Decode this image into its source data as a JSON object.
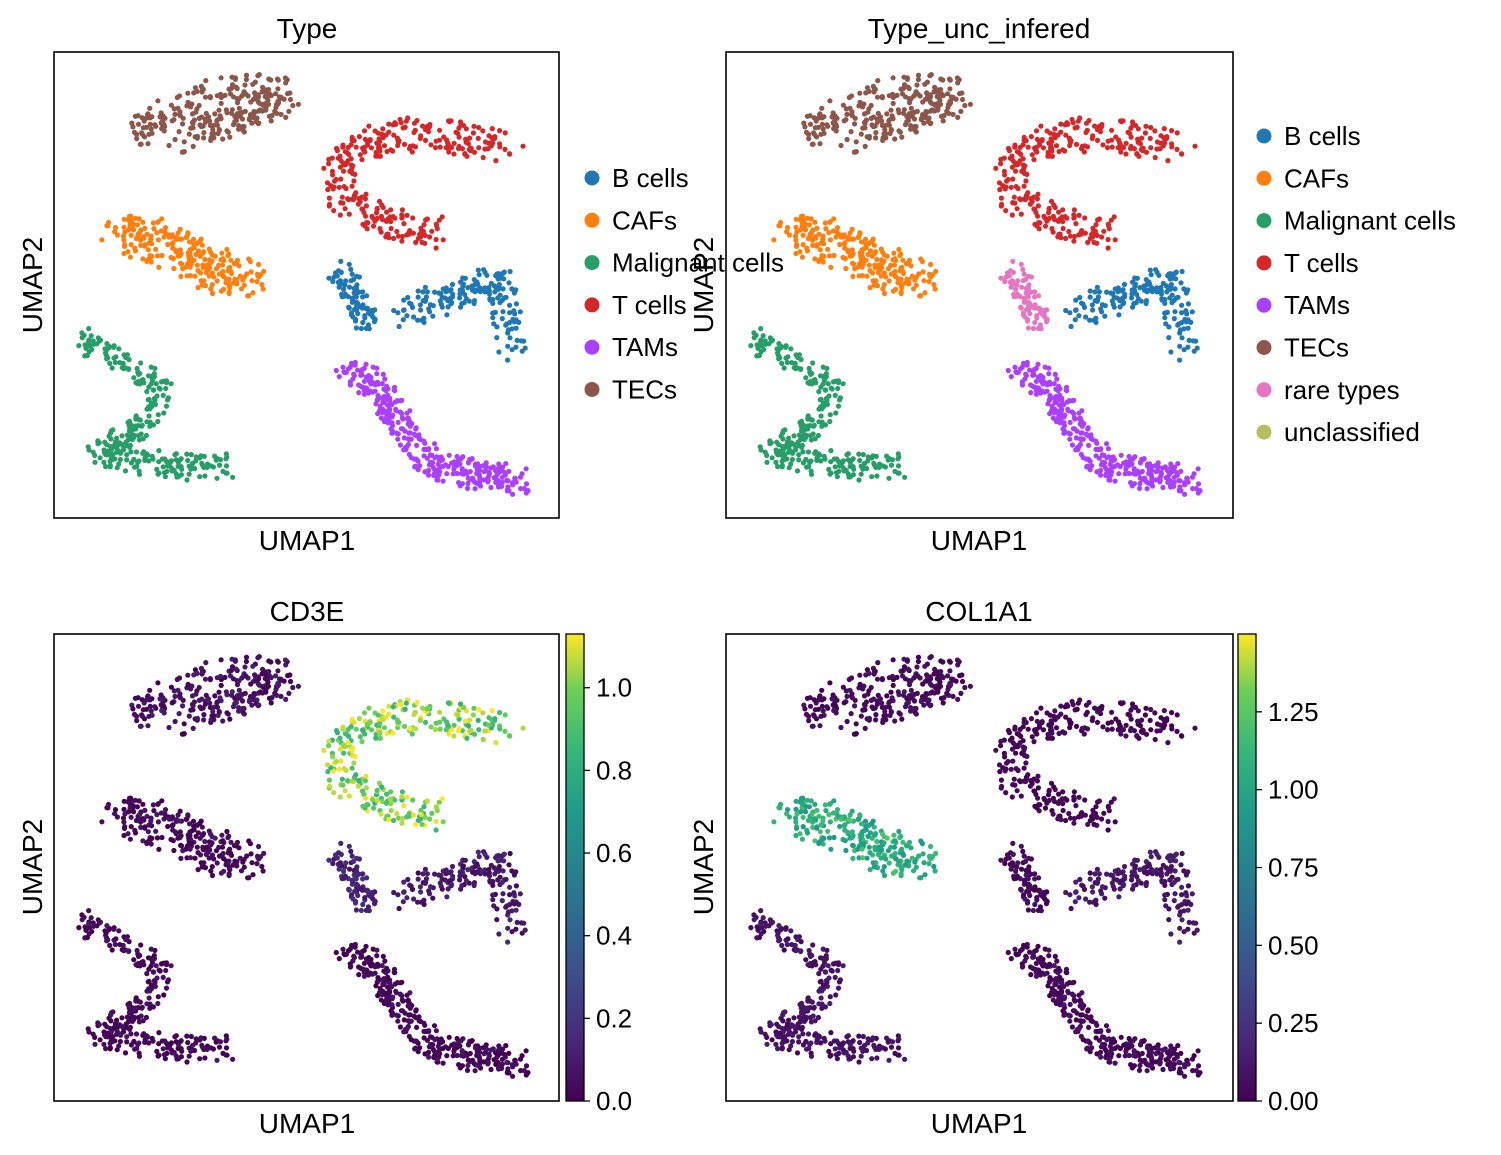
{
  "chart_data": [
    {
      "type": "scatter",
      "title": "Type",
      "xlabel": "UMAP1",
      "ylabel": "UMAP2",
      "coloring": "categorical",
      "legend_position": "right",
      "legend": [
        {
          "name": "B cells",
          "color": "#1f77b4"
        },
        {
          "name": "CAFs",
          "color": "#ff7f0e"
        },
        {
          "name": "Malignant cells",
          "color": "#279e68"
        },
        {
          "name": "T cells",
          "color": "#d62728"
        },
        {
          "name": "TAMs",
          "color": "#aa40fc"
        },
        {
          "name": "TECs",
          "color": "#8c564b"
        }
      ],
      "clusters": [
        "TECs",
        "T cells",
        "CAFs",
        "B cells",
        "B cells",
        "Malignant cells",
        "TAMs"
      ]
    },
    {
      "type": "scatter",
      "title": "Type_unc_infered",
      "xlabel": "UMAP1",
      "ylabel": "UMAP2",
      "coloring": "categorical",
      "legend_position": "right",
      "legend": [
        {
          "name": "B cells",
          "color": "#1f77b4"
        },
        {
          "name": "CAFs",
          "color": "#ff7f0e"
        },
        {
          "name": "Malignant cells",
          "color": "#279e68"
        },
        {
          "name": "T cells",
          "color": "#d62728"
        },
        {
          "name": "TAMs",
          "color": "#aa40fc"
        },
        {
          "name": "TECs",
          "color": "#8c564b"
        },
        {
          "name": "rare types",
          "color": "#e377c2"
        },
        {
          "name": "unclassified",
          "color": "#b5bd61"
        }
      ],
      "clusters": [
        "TECs",
        "T cells",
        "CAFs",
        "rare types",
        "B cells",
        "Malignant cells",
        "TAMs"
      ]
    },
    {
      "type": "scatter",
      "title": "CD3E",
      "xlabel": "UMAP1",
      "ylabel": "UMAP2",
      "coloring": "continuous",
      "colormap": "viridis",
      "colorbar_range": [
        0,
        1.13
      ],
      "colorbar_ticks": [
        "0.0",
        "0.2",
        "0.4",
        "0.6",
        "0.8",
        "1.0"
      ],
      "colorbar_tick_values": [
        0,
        0.2,
        0.4,
        0.6,
        0.8,
        1.0
      ],
      "cluster_levels": [
        0.05,
        0.98,
        0.03,
        0.12,
        0.08,
        0.02,
        0.02
      ]
    },
    {
      "type": "scatter",
      "title": "COL1A1",
      "xlabel": "UMAP1",
      "ylabel": "UMAP2",
      "coloring": "continuous",
      "colormap": "viridis",
      "colorbar_range": [
        0,
        1.5
      ],
      "colorbar_ticks": [
        "0.00",
        "0.25",
        "0.50",
        "0.75",
        "1.00",
        "1.25"
      ],
      "colorbar_tick_values": [
        0,
        0.25,
        0.5,
        0.75,
        1.0,
        1.25
      ],
      "cluster_levels": [
        0.04,
        0.01,
        1.05,
        0.03,
        0.1,
        0.08,
        0.04
      ]
    }
  ]
}
